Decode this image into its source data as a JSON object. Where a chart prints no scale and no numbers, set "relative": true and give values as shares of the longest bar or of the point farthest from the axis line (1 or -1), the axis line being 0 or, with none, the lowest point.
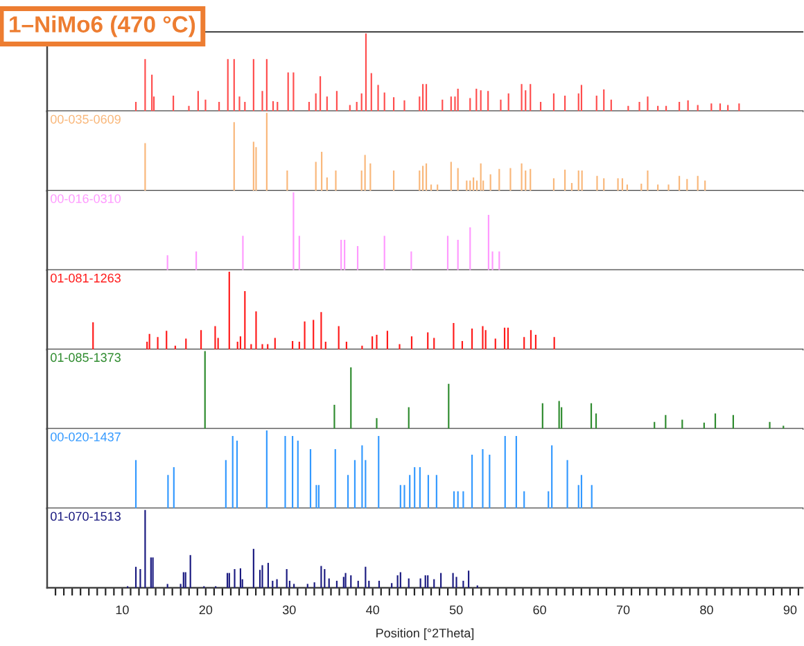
{
  "chart_data": [
    {
      "type": "bar",
      "title": "1–NiMo6 (470 °C)",
      "relative": true,
      "xlim": [
        1,
        91.5
      ],
      "tick_labels": false,
      "color": "#ff4d4d",
      "x": [
        11.63,
        12.74,
        13.55,
        13.79,
        16.12,
        17.98,
        19.09,
        19.97,
        21.6,
        22.65,
        23.4,
        24.04,
        24.69,
        25.73,
        26.78,
        27.31,
        28.07,
        28.59,
        29.87,
        30.51,
        32.38,
        33.19,
        33.72,
        34.53,
        35.7,
        37.27,
        38.09,
        38.67,
        39.19,
        39.84,
        40.65,
        41.41,
        42.52,
        43.8,
        45.61,
        46.01,
        46.42,
        48.35,
        49.39,
        49.86,
        50.21,
        51.67,
        52.42,
        52.95,
        53.82,
        55.34,
        56.27,
        57.84,
        58.31,
        58.89,
        60.12,
        61.69,
        63.03,
        64.66,
        65.01,
        66.82,
        67.69,
        68.57,
        70.61,
        71.95,
        72.94,
        74.16,
        75.15,
        76.73,
        77.77,
        78.94,
        80.57,
        81.62,
        82.55,
        83.89
      ],
      "values": [
        0.12,
        0.67,
        0.47,
        0.19,
        0.2,
        0.07,
        0.26,
        0.15,
        0.12,
        0.67,
        0.67,
        0.19,
        0.12,
        0.67,
        0.26,
        0.67,
        0.13,
        0.12,
        0.5,
        0.5,
        0.12,
        0.23,
        0.45,
        0.19,
        0.26,
        0.08,
        0.12,
        0.23,
        1,
        0.49,
        0.34,
        0.24,
        0.18,
        0.14,
        0.19,
        0.35,
        0.35,
        0.15,
        0.19,
        0.19,
        0.29,
        0.17,
        0.29,
        0.27,
        0.26,
        0.15,
        0.23,
        0.35,
        0.27,
        0.35,
        0.12,
        0.23,
        0.2,
        0.23,
        0.34,
        0.2,
        0.28,
        0.15,
        0.07,
        0.12,
        0.19,
        0.07,
        0.07,
        0.12,
        0.14,
        0.08,
        0.1,
        0.1,
        0.08,
        0.1
      ]
    },
    {
      "type": "bar",
      "title": "00-035-0609",
      "relative": true,
      "xlim": [
        1,
        91.5
      ],
      "tick_labels": false,
      "color": "#f9b77a",
      "x": [
        12.74,
        23.4,
        25.73,
        26.03,
        27.31,
        29.76,
        33.19,
        33.89,
        34.53,
        35.58,
        38.67,
        39.08,
        39.72,
        42.52,
        45.61,
        46.01,
        46.42,
        47.0,
        47.76,
        49.39,
        50.21,
        51.26,
        51.67,
        52.07,
        52.48,
        52.95,
        53.24,
        54.11,
        55.16,
        56.5,
        57.84,
        58.31,
        58.89,
        61.69,
        63.03,
        63.85,
        64.66,
        65.07,
        66.88,
        67.69,
        69.38,
        69.91,
        70.49,
        72.18,
        72.94,
        74.16,
        75.44,
        76.73,
        77.66,
        78.94,
        79.81
      ],
      "values": [
        0.61,
        0.88,
        0.63,
        0.56,
        1,
        0.26,
        0.37,
        0.5,
        0.17,
        0.26,
        0.26,
        0.46,
        0.35,
        0.26,
        0.26,
        0.32,
        0.35,
        0.08,
        0.08,
        0.37,
        0.29,
        0.13,
        0.13,
        0.17,
        0.13,
        0.35,
        0.13,
        0.21,
        0.28,
        0.29,
        0.35,
        0.26,
        0.28,
        0.16,
        0.27,
        0.1,
        0.26,
        0.26,
        0.19,
        0.16,
        0.16,
        0.16,
        0.08,
        0.09,
        0.26,
        0.08,
        0.08,
        0.19,
        0.15,
        0.19,
        0.13
      ]
    },
    {
      "type": "bar",
      "title": "00-016-0310",
      "relative": true,
      "xlim": [
        1,
        91.5
      ],
      "tick_labels": false,
      "color": "#ff99ff",
      "x": [
        15.42,
        18.86,
        24.45,
        30.51,
        31.21,
        36.22,
        36.63,
        38.2,
        41.41,
        44.62,
        48.99,
        50.21,
        51.67,
        53.88,
        54.35,
        55.16
      ],
      "values": [
        0.19,
        0.24,
        0.44,
        1,
        0.44,
        0.39,
        0.39,
        0.31,
        0.44,
        0.24,
        0.44,
        0.39,
        0.55,
        0.71,
        0.24,
        0.24
      ]
    },
    {
      "type": "bar",
      "title": "01-081-1263",
      "relative": true,
      "xlim": [
        1,
        91.5
      ],
      "tick_labels": false,
      "color": "#ff1a1a",
      "x": [
        6.5,
        12.97,
        13.26,
        14.25,
        15.3,
        16.35,
        17.63,
        19.44,
        21.13,
        21.48,
        22.82,
        23.81,
        24.16,
        24.69,
        25.44,
        26.03,
        26.78,
        27.42,
        28.3,
        30.4,
        31.21,
        31.85,
        32.9,
        33.83,
        34.36,
        35.93,
        36.86,
        38.73,
        39.95,
        40.48,
        41.76,
        43.22,
        44.67,
        46.6,
        47.35,
        49.69,
        50.73,
        51.9,
        53.18,
        53.53,
        54.7,
        55.8,
        56.21,
        58.14,
        58.95,
        59.53,
        61.75
      ],
      "values": [
        0.35,
        0.1,
        0.2,
        0.16,
        0.24,
        0.05,
        0.14,
        0.25,
        0.3,
        0.15,
        1,
        0.1,
        0.17,
        0.75,
        0.07,
        0.49,
        0.07,
        0.07,
        0.15,
        0.11,
        0.1,
        0.36,
        0.38,
        0.48,
        0.1,
        0.3,
        0.1,
        0.05,
        0.17,
        0.19,
        0.24,
        0.07,
        0.17,
        0.22,
        0.15,
        0.34,
        0.11,
        0.27,
        0.3,
        0.25,
        0.14,
        0.28,
        0.28,
        0.16,
        0.25,
        0.19,
        0.16
      ]
    },
    {
      "type": "bar",
      "title": "01-085-1373",
      "relative": true,
      "xlim": [
        1,
        91.5
      ],
      "tick_labels": false,
      "color": "#2e8b2e",
      "x": [
        19.91,
        35.41,
        37.39,
        40.48,
        44.32,
        49.1,
        60.35,
        62.33,
        62.62,
        66.18,
        66.76,
        73.75,
        75.09,
        77.08,
        79.7,
        81.04,
        83.19,
        87.56,
        89.2
      ],
      "values": [
        1,
        0.31,
        0.79,
        0.14,
        0.28,
        0.58,
        0.33,
        0.36,
        0.28,
        0.33,
        0.2,
        0.09,
        0.18,
        0.12,
        0.08,
        0.2,
        0.18,
        0.09,
        0.04
      ]
    },
    {
      "type": "bar",
      "title": "00-020-1437",
      "relative": true,
      "xlim": [
        1,
        91.5
      ],
      "tick_labels": false,
      "color": "#3399ff",
      "x": [
        11.63,
        15.48,
        16.18,
        22.41,
        23.23,
        23.75,
        27.31,
        29.52,
        30.4,
        31.04,
        32.55,
        33.25,
        33.54,
        35.52,
        37.04,
        37.86,
        38.73,
        39.14,
        40.71,
        43.33,
        43.8,
        44.44,
        45.02,
        45.66,
        46.66,
        47.65,
        49.74,
        50.21,
        50.85,
        51.9,
        53.18,
        54.0,
        55.86,
        57.2,
        58.14,
        61.05,
        61.46,
        63.32,
        64.66,
        65.01,
        66.24
      ],
      "values": [
        0.62,
        0.43,
        0.53,
        0.62,
        0.93,
        0.87,
        1,
        0.93,
        0.93,
        0.87,
        0.76,
        0.3,
        0.3,
        0.76,
        0.43,
        0.62,
        0.81,
        0.62,
        0.93,
        0.3,
        0.3,
        0.43,
        0.53,
        0.53,
        0.43,
        0.43,
        0.22,
        0.22,
        0.22,
        0.69,
        0.76,
        0.69,
        0.93,
        0.93,
        0.22,
        0.22,
        0.81,
        0.62,
        0.3,
        0.43,
        0.3
      ]
    },
    {
      "type": "bar",
      "title": "01-070-1513",
      "relative": true,
      "xlim": [
        1,
        91.5
      ],
      "tick_labels": "x",
      "color": "#1a1a80",
      "xlabel": "Position [°2Theta]",
      "xticks": [
        {
          "value": 2,
          "label": null
        },
        {
          "value": 3,
          "label": null
        },
        {
          "value": 4,
          "label": null
        },
        {
          "value": 5,
          "label": null
        },
        {
          "value": 6,
          "label": null
        },
        {
          "value": 7,
          "label": null
        },
        {
          "value": 8,
          "label": null
        },
        {
          "value": 9,
          "label": null
        },
        10,
        {
          "value": 11,
          "label": null
        },
        {
          "value": 12,
          "label": null
        },
        {
          "value": 13,
          "label": null
        },
        {
          "value": 14,
          "label": null
        },
        {
          "value": 15,
          "label": null
        },
        {
          "value": 16,
          "label": null
        },
        {
          "value": 17,
          "label": null
        },
        {
          "value": 18,
          "label": null
        },
        {
          "value": 19,
          "label": null
        },
        20,
        {
          "value": 21,
          "label": null
        },
        {
          "value": 22,
          "label": null
        },
        {
          "value": 23,
          "label": null
        },
        {
          "value": 24,
          "label": null
        },
        {
          "value": 25,
          "label": null
        },
        {
          "value": 26,
          "label": null
        },
        {
          "value": 27,
          "label": null
        },
        {
          "value": 28,
          "label": null
        },
        {
          "value": 29,
          "label": null
        },
        30,
        {
          "value": 31,
          "label": null
        },
        {
          "value": 32,
          "label": null
        },
        {
          "value": 33,
          "label": null
        },
        {
          "value": 34,
          "label": null
        },
        {
          "value": 35,
          "label": null
        },
        {
          "value": 36,
          "label": null
        },
        {
          "value": 37,
          "label": null
        },
        {
          "value": 38,
          "label": null
        },
        {
          "value": 39,
          "label": null
        },
        40,
        {
          "value": 41,
          "label": null
        },
        {
          "value": 42,
          "label": null
        },
        {
          "value": 43,
          "label": null
        },
        {
          "value": 44,
          "label": null
        },
        {
          "value": 45,
          "label": null
        },
        {
          "value": 46,
          "label": null
        },
        {
          "value": 47,
          "label": null
        },
        {
          "value": 48,
          "label": null
        },
        {
          "value": 49,
          "label": null
        },
        50,
        {
          "value": 51,
          "label": null
        },
        {
          "value": 52,
          "label": null
        },
        {
          "value": 53,
          "label": null
        },
        {
          "value": 54,
          "label": null
        },
        {
          "value": 55,
          "label": null
        },
        {
          "value": 56,
          "label": null
        },
        {
          "value": 57,
          "label": null
        },
        {
          "value": 58,
          "label": null
        },
        {
          "value": 59,
          "label": null
        },
        60,
        {
          "value": 61,
          "label": null
        },
        {
          "value": 62,
          "label": null
        },
        {
          "value": 63,
          "label": null
        },
        {
          "value": 64,
          "label": null
        },
        {
          "value": 65,
          "label": null
        },
        {
          "value": 66,
          "label": null
        },
        {
          "value": 67,
          "label": null
        },
        {
          "value": 68,
          "label": null
        },
        {
          "value": 69,
          "label": null
        },
        70,
        {
          "value": 71,
          "label": null
        },
        {
          "value": 72,
          "label": null
        },
        {
          "value": 73,
          "label": null
        },
        {
          "value": 74,
          "label": null
        },
        {
          "value": 75,
          "label": null
        },
        {
          "value": 76,
          "label": null
        },
        {
          "value": 77,
          "label": null
        },
        {
          "value": 78,
          "label": null
        },
        {
          "value": 79,
          "label": null
        },
        80,
        {
          "value": 81,
          "label": null
        },
        {
          "value": 82,
          "label": null
        },
        {
          "value": 83,
          "label": null
        },
        {
          "value": 84,
          "label": null
        },
        {
          "value": 85,
          "label": null
        },
        {
          "value": 86,
          "label": null
        },
        {
          "value": 87,
          "label": null
        },
        {
          "value": 88,
          "label": null
        },
        {
          "value": 89,
          "label": null
        },
        90,
        {
          "value": 91,
          "label": null
        }
      ],
      "x": [
        10.64,
        11.63,
        12.16,
        12.74,
        13.44,
        13.67,
        15.42,
        16.99,
        17.34,
        17.58,
        18.16,
        19.79,
        21.19,
        22.59,
        22.82,
        23.46,
        24.16,
        24.39,
        25.73,
        26.49,
        26.78,
        27.48,
        28.01,
        28.53,
        29.7,
        30.05,
        30.57,
        32.2,
        33.02,
        33.83,
        34.24,
        34.77,
        35.7,
        36.52,
        36.75,
        37.39,
        38.26,
        39.14,
        39.55,
        40.77,
        42.28,
        42.98,
        43.33,
        44.32,
        45.72,
        46.31,
        46.6,
        47.35,
        48.17,
        49.62,
        50.03,
        50.85,
        51.49,
        52.54
      ],
      "values": [
        0.02,
        0.27,
        0.24,
        1,
        0.39,
        0.39,
        0.05,
        0.05,
        0.2,
        0.2,
        0.42,
        0.02,
        0.02,
        0.19,
        0.19,
        0.24,
        0.25,
        0.11,
        0.5,
        0.23,
        0.29,
        0.32,
        0.09,
        0.11,
        0.24,
        0.09,
        0.05,
        0.05,
        0.07,
        0.28,
        0.24,
        0.12,
        0.09,
        0.14,
        0.19,
        0.16,
        0.09,
        0.27,
        0.09,
        0.09,
        0.06,
        0.16,
        0.2,
        0.12,
        0.12,
        0.16,
        0.16,
        0.11,
        0.19,
        0.19,
        0.14,
        0.09,
        0.22,
        0.03
      ]
    }
  ]
}
